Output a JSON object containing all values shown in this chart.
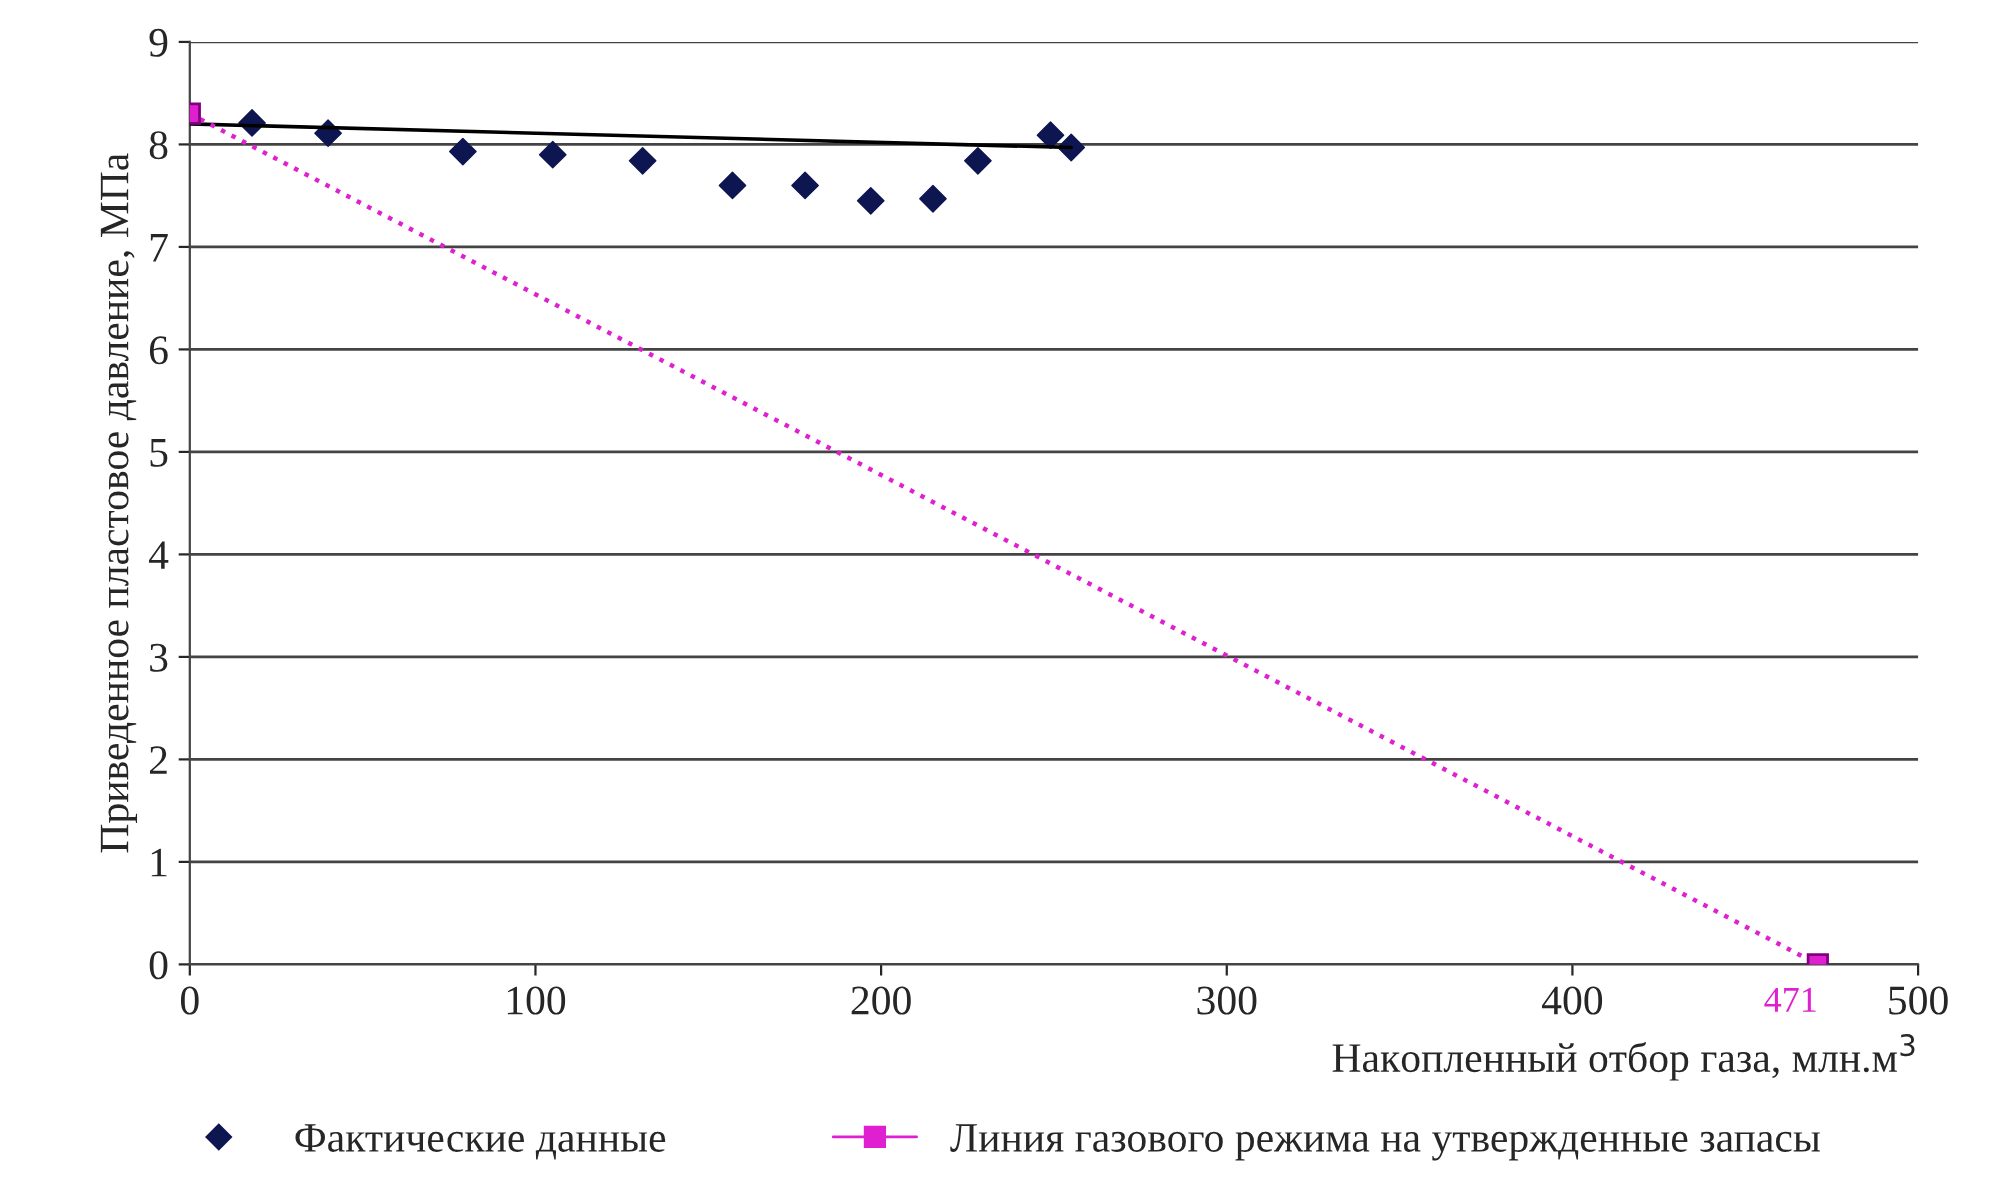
{
  "chart_data": {
    "type": "scatter",
    "xlabel": "Накопленный отбор газа, млн.м$^{3}$",
    "ylabel": "Приведенное пластовое давление, МПа",
    "xlim": [
      0,
      500
    ],
    "xticks": [
      0,
      100,
      200,
      300,
      400,
      500
    ],
    "ylim": [
      0,
      9
    ],
    "yticks": [
      0,
      1,
      2,
      3,
      4,
      5,
      6,
      7,
      8,
      9
    ],
    "grid": "y",
    "legend": "bottom",
    "series": [
      {
        "name": "Фактические данные",
        "marker": "diamond",
        "color": "#0d1650",
        "x": [
          18,
          40,
          79,
          105,
          131,
          157,
          178,
          197,
          215,
          228,
          249,
          255
        ],
        "values": [
          8.21,
          8.11,
          7.93,
          7.9,
          7.84,
          7.6,
          7.6,
          7.45,
          7.47,
          7.84,
          8.09,
          7.97
        ]
      },
      {
        "type": "line",
        "marker": "none",
        "line_style": "solid",
        "color": "#000000",
        "x": [
          0,
          255
        ],
        "values": [
          8.2,
          7.97
        ]
      },
      {
        "name": "Линия газового режима на утвержденные запасы",
        "type": "line",
        "marker": "square",
        "line_style": "dotted",
        "color": "#e020d0",
        "x": [
          0,
          471
        ],
        "values": [
          8.3,
          0
        ]
      }
    ],
    "annotations": [
      {
        "text": "471",
        "x": 471,
        "y": 0
      }
    ]
  }
}
